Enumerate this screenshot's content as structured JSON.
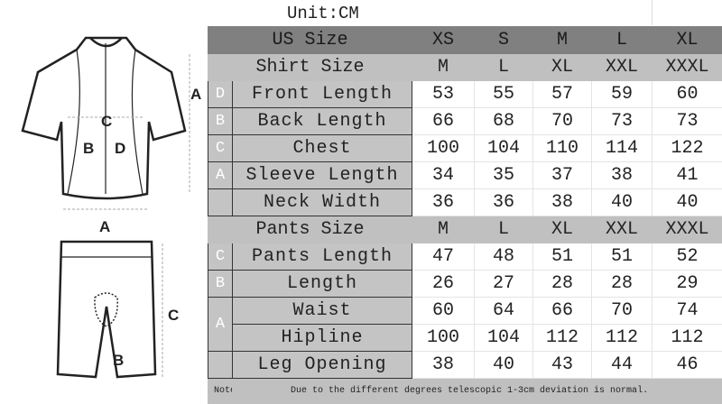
{
  "unit_label": "Unit:CM",
  "diagram": {
    "jersey_labels": [
      "A",
      "B",
      "C",
      "D"
    ],
    "shorts_labels": [
      "A",
      "B",
      "C"
    ]
  },
  "sizes": {
    "label": "US Size",
    "values": [
      "XS",
      "S",
      "M",
      "L",
      "XL"
    ]
  },
  "shirt": {
    "label": "Shirt Size",
    "values": [
      "M",
      "L",
      "XL",
      "XXL",
      "XXXL"
    ],
    "rows": [
      {
        "letter": "D",
        "name": "Front Length",
        "values": [
          "53",
          "55",
          "57",
          "59",
          "60"
        ]
      },
      {
        "letter": "B",
        "name": "Back Length",
        "values": [
          "66",
          "68",
          "70",
          "73",
          "73"
        ]
      },
      {
        "letter": "C",
        "name": "Chest",
        "values": [
          "100",
          "104",
          "110",
          "114",
          "122"
        ]
      },
      {
        "letter": "A",
        "name": "Sleeve Length",
        "values": [
          "34",
          "35",
          "37",
          "38",
          "41"
        ]
      },
      {
        "letter": "",
        "name": "Neck Width",
        "values": [
          "36",
          "36",
          "38",
          "40",
          "40"
        ]
      }
    ]
  },
  "pants": {
    "label": "Pants Size",
    "values": [
      "M",
      "L",
      "XL",
      "XXL",
      "XXXL"
    ],
    "rows": [
      {
        "letter": "C",
        "name": "Pants Length",
        "values": [
          "47",
          "48",
          "51",
          "51",
          "52"
        ]
      },
      {
        "letter": "B",
        "name": "Length",
        "values": [
          "26",
          "27",
          "28",
          "28",
          "29"
        ]
      },
      {
        "letter": "A",
        "name": "Waist",
        "values": [
          "60",
          "64",
          "66",
          "70",
          "74"
        ]
      },
      {
        "letter": "",
        "name": "Hipline",
        "values": [
          "100",
          "104",
          "112",
          "112",
          "112"
        ]
      },
      {
        "letter": "",
        "name": "Leg Opening",
        "values": [
          "38",
          "40",
          "43",
          "44",
          "46"
        ]
      }
    ]
  },
  "note": {
    "label": "Note:",
    "text": "Due to the different degrees telescopic 1-3cm deviation is normal."
  }
}
